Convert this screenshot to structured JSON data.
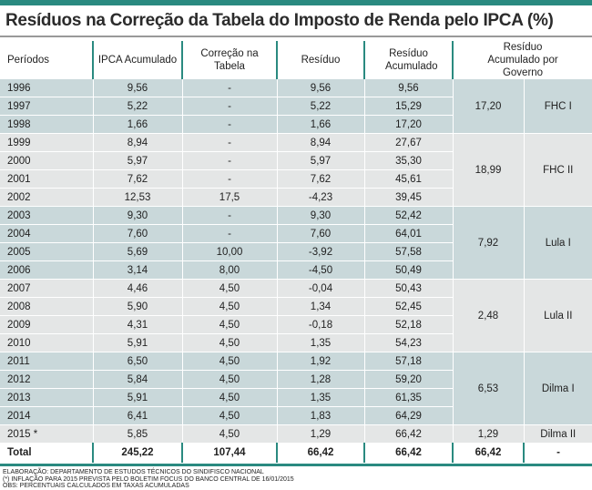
{
  "title": "Resíduos na Correção da Tabela do Imposto de Renda pelo IPCA (%)",
  "colors": {
    "accent": "#2a8a80",
    "band_blue": "#c9d8da",
    "band_gray": "#e4e6e6"
  },
  "headers": [
    "Períodos",
    "IPCA Acumulado",
    "Correção na Tabela",
    "Resíduo",
    "Resíduo Acumulado",
    "Resíduo Acumulado por Governo"
  ],
  "groups": [
    {
      "governo": "FHC I",
      "residuo_governo": "17,20",
      "rows": [
        [
          "1996",
          "9,56",
          "-",
          "9,56",
          "9,56"
        ],
        [
          "1997",
          "5,22",
          "-",
          "5,22",
          "15,29"
        ],
        [
          "1998",
          "1,66",
          "-",
          "1,66",
          "17,20"
        ]
      ]
    },
    {
      "governo": "FHC II",
      "residuo_governo": "18,99",
      "rows": [
        [
          "1999",
          "8,94",
          "-",
          "8,94",
          "27,67"
        ],
        [
          "2000",
          "5,97",
          "-",
          "5,97",
          "35,30"
        ],
        [
          "2001",
          "7,62",
          "-",
          "7,62",
          "45,61"
        ],
        [
          "2002",
          "12,53",
          "17,5",
          "-4,23",
          "39,45"
        ]
      ]
    },
    {
      "governo": "Lula I",
      "residuo_governo": "7,92",
      "rows": [
        [
          "2003",
          "9,30",
          "-",
          "9,30",
          "52,42"
        ],
        [
          "2004",
          "7,60",
          "-",
          "7,60",
          "64,01"
        ],
        [
          "2005",
          "5,69",
          "10,00",
          "-3,92",
          "57,58"
        ],
        [
          "2006",
          "3,14",
          "8,00",
          "-4,50",
          "50,49"
        ]
      ]
    },
    {
      "governo": "Lula II",
      "residuo_governo": "2,48",
      "rows": [
        [
          "2007",
          "4,46",
          "4,50",
          "-0,04",
          "50,43"
        ],
        [
          "2008",
          "5,90",
          "4,50",
          "1,34",
          "52,45"
        ],
        [
          "2009",
          "4,31",
          "4,50",
          "-0,18",
          "52,18"
        ],
        [
          "2010",
          "5,91",
          "4,50",
          "1,35",
          "54,23"
        ]
      ]
    },
    {
      "governo": "Dilma I",
      "residuo_governo": "6,53",
      "rows": [
        [
          "2011",
          "6,50",
          "4,50",
          "1,92",
          "57,18"
        ],
        [
          "2012",
          "5,84",
          "4,50",
          "1,28",
          "59,20"
        ],
        [
          "2013",
          "5,91",
          "4,50",
          "1,35",
          "61,35"
        ],
        [
          "2014",
          "6,41",
          "4,50",
          "1,83",
          "64,29"
        ]
      ]
    },
    {
      "governo": "Dilma II",
      "residuo_governo": "1,29",
      "rows": [
        [
          "2015 *",
          "5,85",
          "4,50",
          "1,29",
          "66,42"
        ]
      ]
    }
  ],
  "total": [
    "Total",
    "245,22",
    "107,44",
    "66,42",
    "66,42",
    "66,42",
    "-"
  ],
  "notes": [
    "Elaboração: Departamento de Estudos Técnicos do Sindifisco Nacional",
    "(*) Inflação para 2015 prevista pelo Boletim Focus do Banco Central de 16/01/2015",
    "OBS: Percentuais calculados em taxas acumuladas"
  ]
}
